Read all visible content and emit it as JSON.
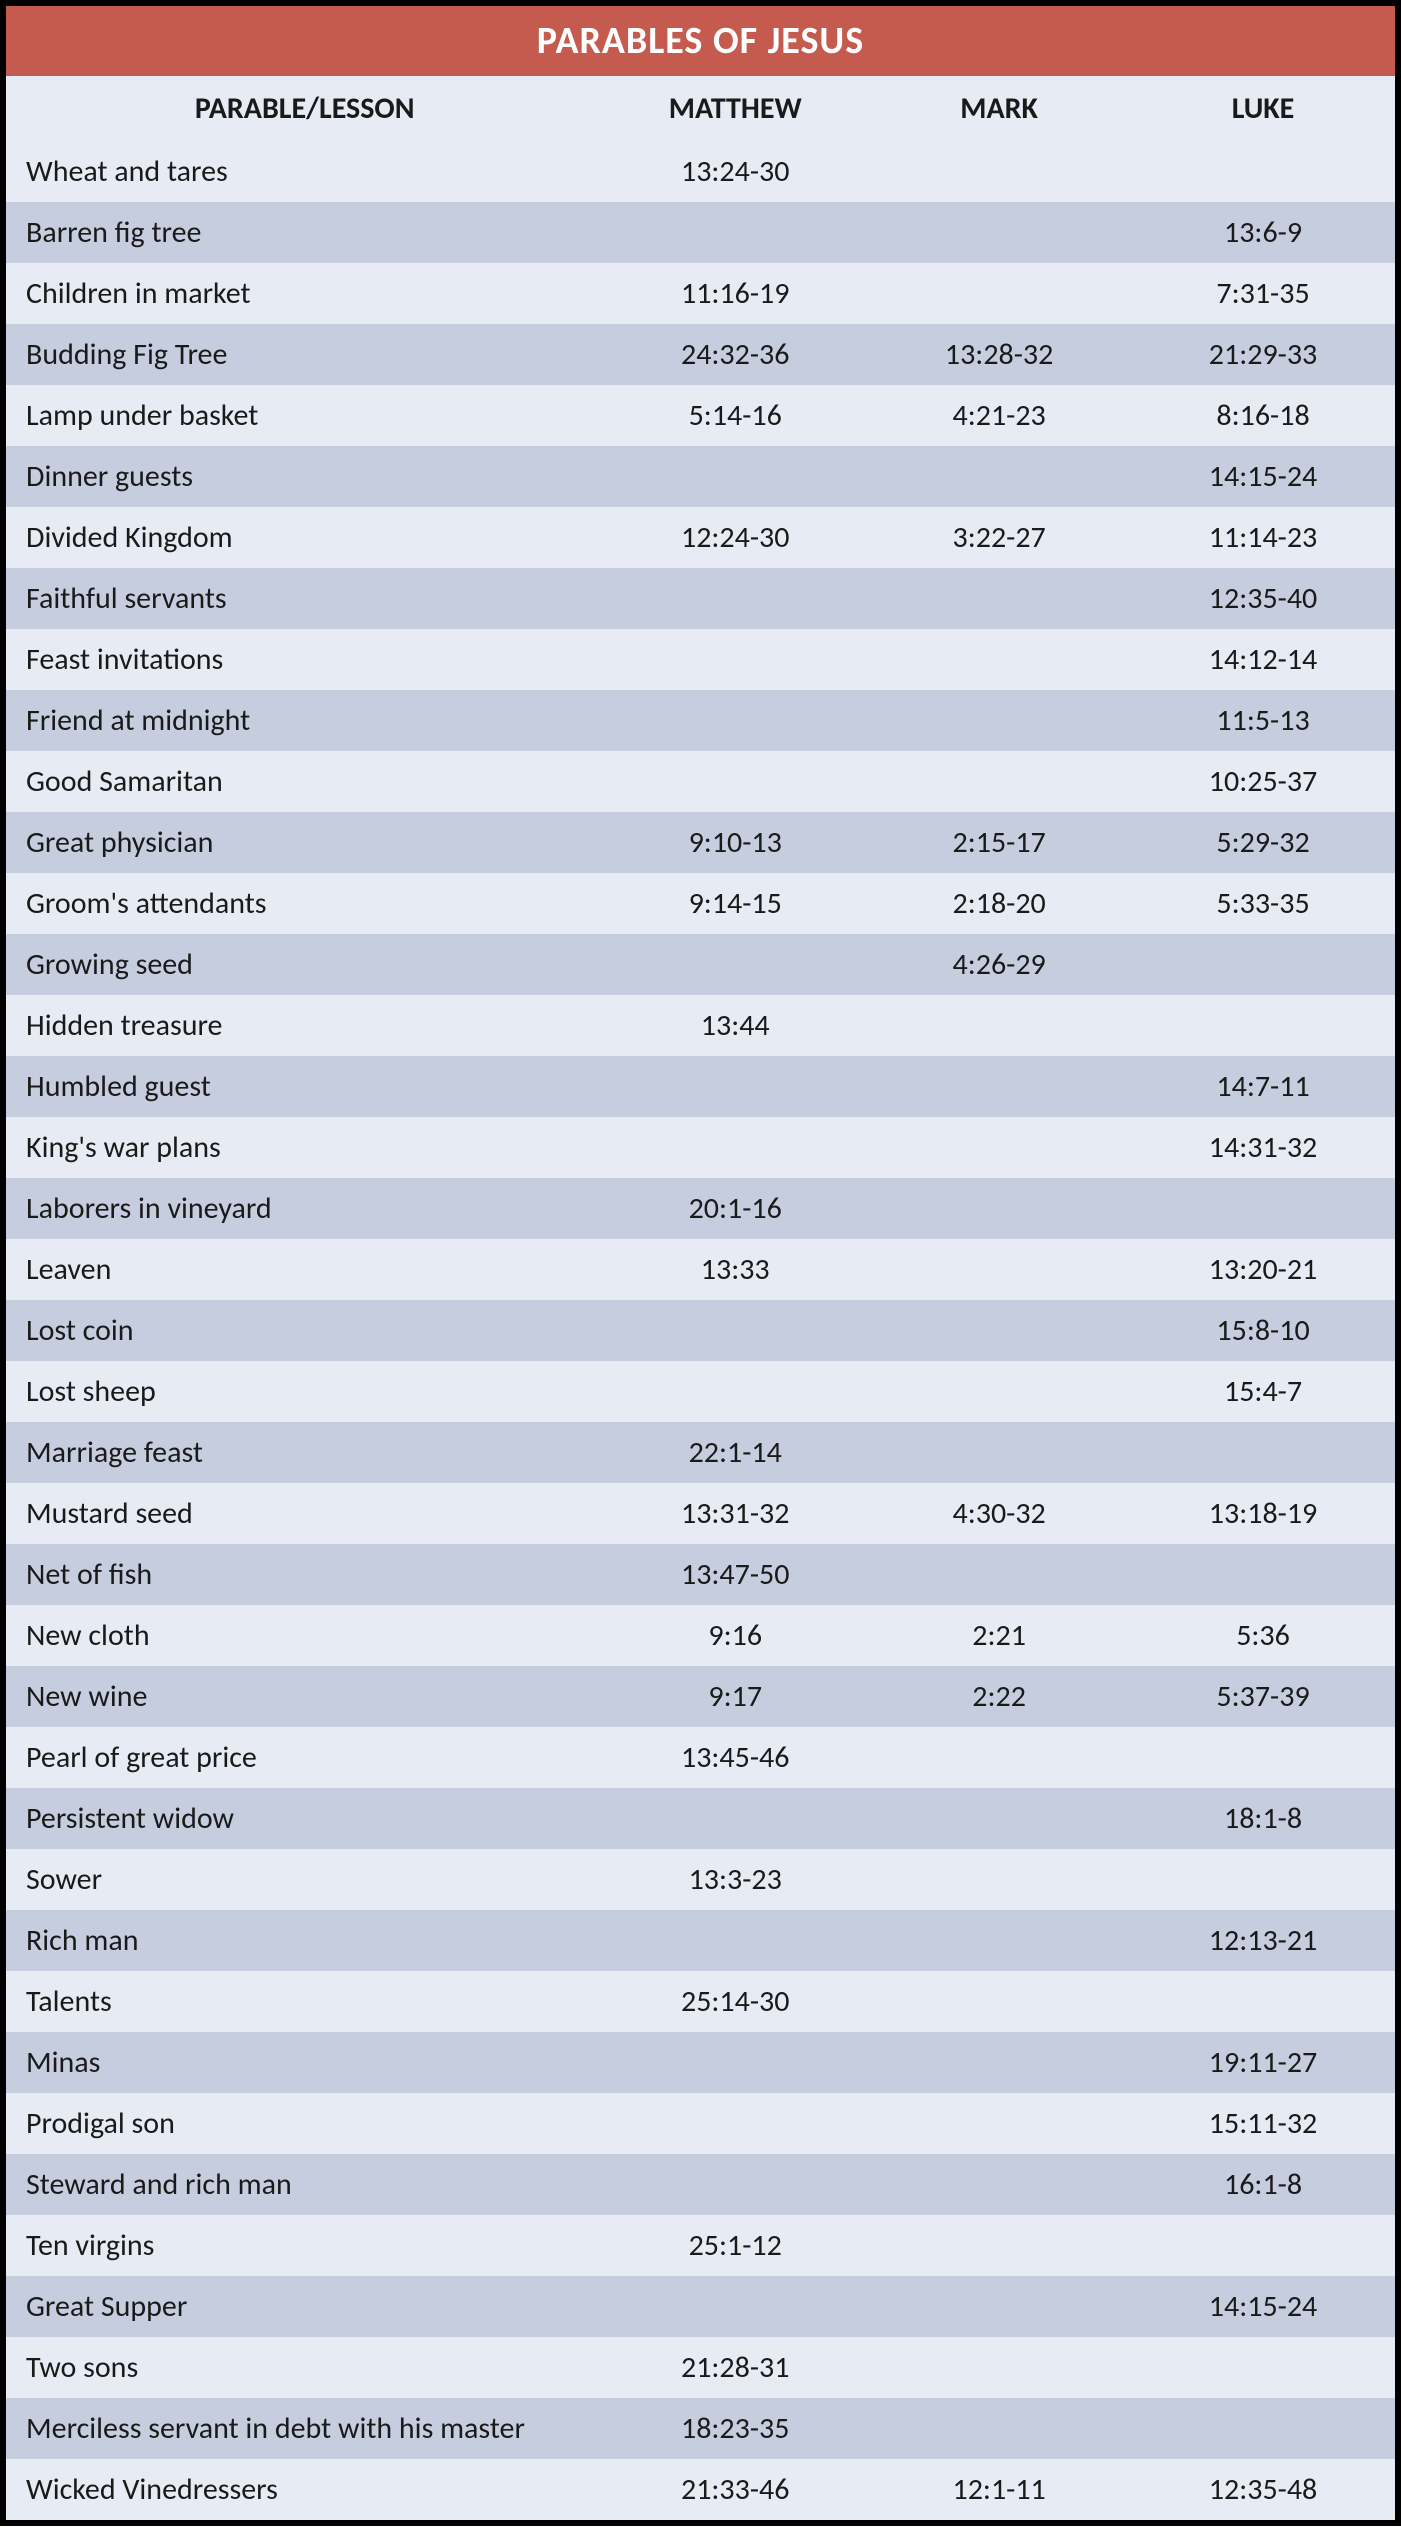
{
  "table": {
    "title": "PARABLES OF JESUS",
    "title_bg": "#c55a4e",
    "title_color": "#ffffff",
    "header_bg": "#e6ebf4",
    "header_color": "#1a1a1a",
    "row_odd_bg": "#e6ebf4",
    "row_even_bg": "#c6cddf",
    "text_color": "#1a1a1a",
    "columns": [
      "PARABLE/LESSON",
      "MATTHEW",
      "MARK",
      "LUKE"
    ],
    "rows": [
      {
        "parable": "Wheat and tares",
        "matthew": "13:24-30",
        "mark": "",
        "luke": ""
      },
      {
        "parable": "Barren fig tree",
        "matthew": "",
        "mark": "",
        "luke": "13:6-9"
      },
      {
        "parable": "Children in market",
        "matthew": "11:16-19",
        "mark": "",
        "luke": "7:31-35"
      },
      {
        "parable": "Budding Fig Tree",
        "matthew": "24:32-36",
        "mark": "13:28-32",
        "luke": "21:29-33"
      },
      {
        "parable": "Lamp under basket",
        "matthew": "5:14-16",
        "mark": "4:21-23",
        "luke": "8:16-18"
      },
      {
        "parable": "Dinner guests",
        "matthew": "",
        "mark": "",
        "luke": "14:15-24"
      },
      {
        "parable": "Divided Kingdom",
        "matthew": "12:24-30",
        "mark": "3:22-27",
        "luke": "11:14-23"
      },
      {
        "parable": "Faithful servants",
        "matthew": "",
        "mark": "",
        "luke": "12:35-40"
      },
      {
        "parable": "Feast invitations",
        "matthew": "",
        "mark": "",
        "luke": "14:12-14"
      },
      {
        "parable": "Friend at midnight",
        "matthew": "",
        "mark": "",
        "luke": "11:5-13"
      },
      {
        "parable": "Good Samaritan",
        "matthew": "",
        "mark": "",
        "luke": "10:25-37"
      },
      {
        "parable": "Great physician",
        "matthew": "9:10-13",
        "mark": "2:15-17",
        "luke": "5:29-32"
      },
      {
        "parable": "Groom's attendants",
        "matthew": "9:14-15",
        "mark": "2:18-20",
        "luke": "5:33-35"
      },
      {
        "parable": "Growing seed",
        "matthew": "",
        "mark": "4:26-29",
        "luke": ""
      },
      {
        "parable": "Hidden treasure",
        "matthew": "13:44",
        "mark": "",
        "luke": ""
      },
      {
        "parable": "Humbled guest",
        "matthew": "",
        "mark": "",
        "luke": "14:7-11"
      },
      {
        "parable": "King's war plans",
        "matthew": "",
        "mark": "",
        "luke": "14:31-32"
      },
      {
        "parable": "Laborers in vineyard",
        "matthew": "20:1-16",
        "mark": "",
        "luke": ""
      },
      {
        "parable": "Leaven",
        "matthew": "13:33",
        "mark": "",
        "luke": "13:20-21"
      },
      {
        "parable": "Lost coin",
        "matthew": "",
        "mark": "",
        "luke": "15:8-10"
      },
      {
        "parable": "Lost sheep",
        "matthew": "",
        "mark": "",
        "luke": "15:4-7"
      },
      {
        "parable": "Marriage feast",
        "matthew": "22:1-14",
        "mark": "",
        "luke": ""
      },
      {
        "parable": "Mustard seed",
        "matthew": "13:31-32",
        "mark": "4:30-32",
        "luke": "13:18-19"
      },
      {
        "parable": "Net of fish",
        "matthew": "13:47-50",
        "mark": "",
        "luke": ""
      },
      {
        "parable": "New cloth",
        "matthew": "9:16",
        "mark": "2:21",
        "luke": "5:36"
      },
      {
        "parable": "New wine",
        "matthew": "9:17",
        "mark": "2:22",
        "luke": "5:37-39"
      },
      {
        "parable": "Pearl of great price",
        "matthew": "13:45-46",
        "mark": "",
        "luke": ""
      },
      {
        "parable": "Persistent widow",
        "matthew": "",
        "mark": "",
        "luke": "18:1-8"
      },
      {
        "parable": "Sower",
        "matthew": "13:3-23",
        "mark": "",
        "luke": ""
      },
      {
        "parable": "Rich man",
        "matthew": "",
        "mark": "",
        "luke": "12:13-21"
      },
      {
        "parable": "Talents",
        "matthew": "25:14-30",
        "mark": "",
        "luke": ""
      },
      {
        "parable": "Minas",
        "matthew": "",
        "mark": "",
        "luke": "19:11-27"
      },
      {
        "parable": "Prodigal son",
        "matthew": "",
        "mark": "",
        "luke": "15:11-32"
      },
      {
        "parable": "Steward and rich man",
        "matthew": "",
        "mark": "",
        "luke": "16:1-8"
      },
      {
        "parable": "Ten virgins",
        "matthew": "25:1-12",
        "mark": "",
        "luke": ""
      },
      {
        "parable": "Great Supper",
        "matthew": "",
        "mark": "",
        "luke": "14:15-24"
      },
      {
        "parable": "Two sons",
        "matthew": "21:28-31",
        "mark": "",
        "luke": ""
      },
      {
        "parable": "Merciless servant in debt with his master",
        "matthew": "18:23-35",
        "mark": "",
        "luke": ""
      },
      {
        "parable": "Wicked Vinedressers",
        "matthew": "21:33-46",
        "mark": "12:1-11",
        "luke": "12:35-48"
      }
    ]
  }
}
